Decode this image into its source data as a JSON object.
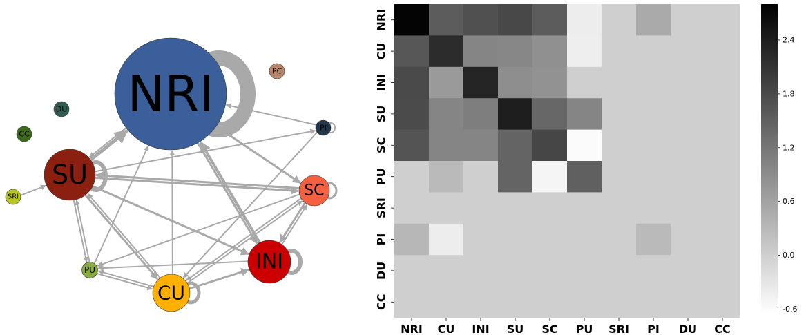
{
  "network": {
    "nodes": [
      {
        "id": "NRI",
        "label": "NRI",
        "color": "#3a5f9a"
      },
      {
        "id": "SU",
        "label": "SU",
        "color": "#8b2010"
      },
      {
        "id": "CU",
        "label": "CU",
        "color": "#ffb000"
      },
      {
        "id": "INI",
        "label": "INI",
        "color": "#cc0000"
      },
      {
        "id": "SC",
        "label": "SC",
        "color": "#f56040"
      },
      {
        "id": "PU",
        "label": "PU",
        "color": "#86ac40"
      },
      {
        "id": "SRI",
        "label": "SRI",
        "color": "#b8c820"
      },
      {
        "id": "PI",
        "label": "PI",
        "color": "#22384a"
      },
      {
        "id": "DU",
        "label": "DU",
        "color": "#2e5e52"
      },
      {
        "id": "CC",
        "label": "CC",
        "color": "#3e6a1e"
      },
      {
        "id": "PC",
        "label": "PC",
        "color": "#b8866a"
      }
    ],
    "edges": [
      {
        "from": "SU",
        "to": "NRI",
        "weight": 5
      },
      {
        "from": "NRI",
        "to": "SU",
        "weight": 2
      },
      {
        "from": "PU",
        "to": "NRI",
        "weight": 2
      },
      {
        "from": "CU",
        "to": "NRI",
        "weight": 2
      },
      {
        "from": "INI",
        "to": "NRI",
        "weight": 4
      },
      {
        "from": "NRI",
        "to": "INI",
        "weight": 3
      },
      {
        "from": "NRI",
        "to": "SC",
        "weight": 3
      },
      {
        "from": "PI",
        "to": "NRI",
        "weight": 2
      },
      {
        "from": "SU",
        "to": "PI",
        "weight": 2
      },
      {
        "from": "SU",
        "to": "SC",
        "weight": 3
      },
      {
        "from": "SC",
        "to": "SU",
        "weight": 3
      },
      {
        "from": "SU",
        "to": "CU",
        "weight": 3
      },
      {
        "from": "CU",
        "to": "SU",
        "weight": 2
      },
      {
        "from": "SU",
        "to": "INI",
        "weight": 3
      },
      {
        "from": "SU",
        "to": "PU",
        "weight": 2
      },
      {
        "from": "PU",
        "to": "SU",
        "weight": 2
      },
      {
        "from": "SRI",
        "to": "SU",
        "weight": 2
      },
      {
        "from": "CU",
        "to": "INI",
        "weight": 3
      },
      {
        "from": "CU",
        "to": "SC",
        "weight": 2
      },
      {
        "from": "SC",
        "to": "CU",
        "weight": 2
      },
      {
        "from": "PI",
        "to": "CU",
        "weight": 2
      },
      {
        "from": "SC",
        "to": "INI",
        "weight": 3
      },
      {
        "from": "INI",
        "to": "SC",
        "weight": 2
      },
      {
        "from": "SC",
        "to": "PU",
        "weight": 2
      },
      {
        "from": "INI",
        "to": "PU",
        "weight": 2
      },
      {
        "from": "PU",
        "to": "CU",
        "weight": 2
      },
      {
        "from": "CU",
        "to": "PU",
        "weight": 2
      }
    ],
    "self_loops": [
      "NRI",
      "SU",
      "CU",
      "INI",
      "SC",
      "PI"
    ],
    "edge_color": "#a9a9a9"
  },
  "chart_data": {
    "type": "heatmap",
    "rows": [
      "NRI",
      "CU",
      "INI",
      "SU",
      "SC",
      "PU",
      "SRI",
      "PI",
      "DU",
      "CC"
    ],
    "cols": [
      "NRI",
      "CU",
      "INI",
      "SU",
      "SC",
      "PU",
      "SRI",
      "PI",
      "DU",
      "CC"
    ],
    "values": [
      [
        2.75,
        1.55,
        1.72,
        1.82,
        1.55,
        -0.4,
        0.0,
        0.5,
        0.0,
        0.0
      ],
      [
        1.62,
        2.2,
        1.0,
        0.98,
        0.85,
        -0.42,
        0.0,
        0.0,
        0.0,
        0.0
      ],
      [
        1.8,
        0.72,
        2.3,
        0.88,
        0.82,
        0.0,
        0.0,
        0.0,
        0.0,
        0.0
      ],
      [
        1.78,
        1.0,
        1.1,
        2.4,
        1.4,
        1.0,
        0.0,
        0.0,
        0.0,
        0.0
      ],
      [
        1.66,
        1.0,
        1.0,
        1.45,
        1.85,
        -0.6,
        0.0,
        0.0,
        0.0,
        0.0
      ],
      [
        0.0,
        0.28,
        0.0,
        1.45,
        -0.52,
        1.5,
        0.0,
        0.0,
        0.0,
        0.0
      ],
      [
        0.0,
        0.0,
        0.0,
        0.0,
        0.0,
        0.0,
        0.0,
        0.0,
        0.0,
        0.0
      ],
      [
        0.33,
        -0.4,
        0.0,
        0.0,
        0.0,
        0.0,
        0.0,
        0.28,
        0.0,
        0.0
      ],
      [
        0.0,
        0.0,
        0.0,
        0.0,
        0.0,
        0.0,
        0.0,
        0.0,
        0.0,
        0.0
      ],
      [
        0.0,
        0.0,
        0.0,
        0.0,
        0.0,
        0.0,
        0.0,
        0.0,
        0.0,
        0.0
      ]
    ],
    "vmin": -0.65,
    "vmax": 2.8,
    "colormap": "Greys",
    "colorbar_ticks": [
      "-0.6",
      "0.0",
      "0.6",
      "1.2",
      "1.8",
      "2.4"
    ]
  }
}
